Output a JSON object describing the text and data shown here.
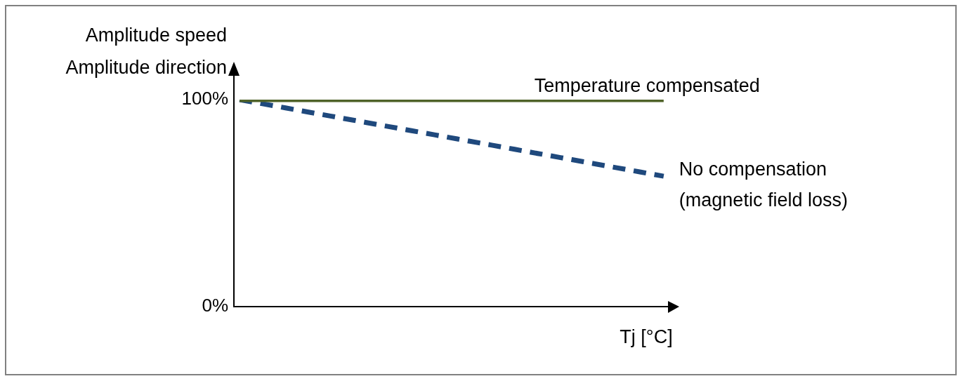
{
  "chart_data": {
    "type": "line",
    "ylabel": "Amplitude speed\nAmplitude direction",
    "xlabel": "Tj [°C]",
    "categories": [
      null,
      null,
      null,
      null,
      null,
      null,
      null,
      null,
      null,
      null,
      null,
      null,
      null,
      null,
      null,
      null,
      null,
      null,
      null,
      null,
      null,
      null,
      null,
      null,
      null,
      null,
      null,
      null,
      null,
      null,
      null,
      null,
      null,
      null,
      null,
      null,
      null,
      null
    ],
    "series": [
      {
        "name": "Temperature compensated",
        "color": "#4f6228",
        "values": [
          100,
          100,
          100,
          100,
          100,
          100,
          100,
          100,
          100,
          100,
          100,
          100,
          100,
          100,
          100,
          100,
          100,
          100,
          100,
          100,
          100,
          100,
          100,
          100,
          100,
          100,
          100,
          100,
          100,
          100,
          100,
          100,
          100,
          100,
          100,
          100,
          100,
          100
        ],
        "line_style": "solid"
      },
      {
        "name": "No compensation\n(magnetic field loss)",
        "color": "#1f497d",
        "values": [
          100,
          99,
          98,
          97,
          96,
          95,
          94,
          93,
          92,
          91,
          90,
          89,
          88,
          87,
          86,
          85,
          84,
          83,
          82,
          81,
          80,
          79,
          78,
          77,
          76,
          75,
          74,
          73,
          72,
          71,
          70,
          69,
          68,
          67,
          66,
          65,
          64,
          63
        ],
        "line_style": "dashed"
      }
    ],
    "ylim": [
      0,
      100
    ],
    "yticks": [
      {
        "value": 0,
        "label": "0%"
      },
      {
        "value": 100,
        "label": "100%"
      }
    ],
    "grid": false,
    "legend": false,
    "marker": "none"
  }
}
